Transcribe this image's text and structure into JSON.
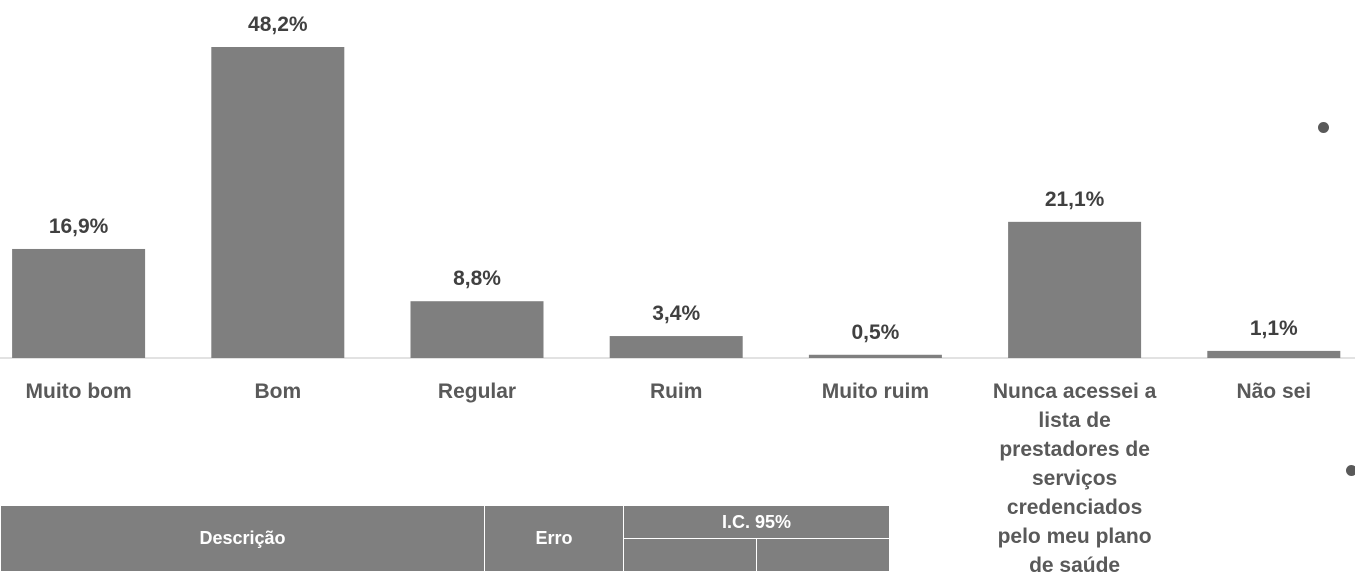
{
  "chart_data": {
    "type": "bar",
    "categories": [
      "Muito bom",
      "Bom",
      "Regular",
      "Ruim",
      "Muito ruim",
      "Nunca acessei a lista de prestadores de serviços credenciados pelo meu plano de saúde",
      "Não sei"
    ],
    "values": [
      16.9,
      48.2,
      8.8,
      3.4,
      0.5,
      21.1,
      1.1
    ],
    "value_labels": [
      "16,9%",
      "48,2%",
      "8,8%",
      "3,4%",
      "0,5%",
      "21,1%",
      "1,1%"
    ],
    "color": "#7f7f7f",
    "grid": false
  },
  "table": {
    "header": {
      "description": "Descrição",
      "error": "Erro",
      "ci": "I.C. 95%"
    }
  }
}
